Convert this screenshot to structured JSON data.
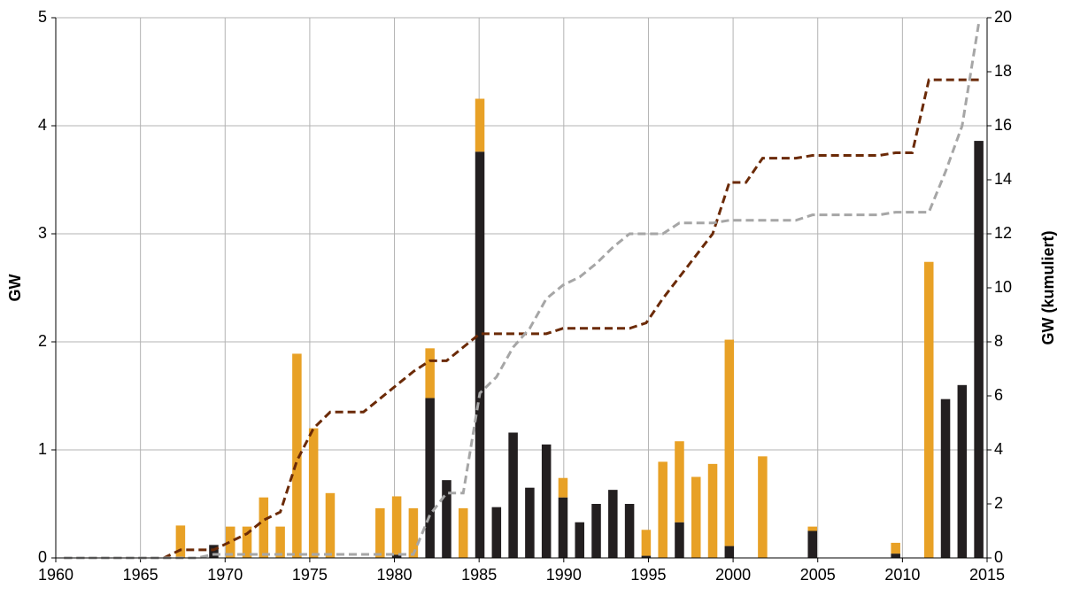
{
  "chart_data": {
    "type": "bar",
    "ylabel": "GW",
    "y2label": "GW (kumuliert)",
    "x": [
      1960,
      1961,
      1962,
      1963,
      1964,
      1965,
      1966,
      1967,
      1968,
      1969,
      1970,
      1971,
      1972,
      1973,
      1974,
      1975,
      1976,
      1977,
      1978,
      1979,
      1980,
      1981,
      1982,
      1983,
      1984,
      1985,
      1986,
      1987,
      1988,
      1989,
      1990,
      1991,
      1992,
      1993,
      1994,
      1995,
      1996,
      1997,
      1998,
      1999,
      2000,
      2001,
      2002,
      2003,
      2004,
      2005,
      2006,
      2007,
      2008,
      2009,
      2010,
      2011,
      2012,
      2013,
      2014,
      2015
    ],
    "xlim": [
      1960,
      2015
    ],
    "xticks": [
      1960,
      1965,
      1970,
      1975,
      1980,
      1985,
      1990,
      1995,
      2000,
      2005,
      2010,
      2015
    ],
    "ylim": [
      0,
      5
    ],
    "yticks": [
      0,
      1,
      2,
      3,
      4,
      5
    ],
    "y2lim": [
      0,
      20
    ],
    "y2ticks": [
      0,
      2,
      4,
      6,
      8,
      10,
      12,
      14,
      16,
      18,
      20
    ],
    "grid": true,
    "stacked": true,
    "series": [
      {
        "type": "bar",
        "color": "#231f20",
        "values": [
          0,
          0,
          0,
          0,
          0,
          0,
          0,
          0,
          0,
          0.12,
          0,
          0,
          0,
          0,
          0,
          0,
          0,
          0,
          0,
          0,
          0.03,
          0,
          1.48,
          0.72,
          0,
          3.76,
          0.47,
          1.16,
          0.65,
          1.05,
          0.56,
          0.33,
          0.5,
          0.63,
          0.5,
          0.02,
          0,
          0.33,
          0,
          0,
          0.11,
          0,
          0,
          0,
          0,
          0.25,
          0,
          0,
          0,
          0,
          0.04,
          0,
          0,
          1.47,
          1.6,
          3.86
        ]
      },
      {
        "type": "bar",
        "color": "#e8a126",
        "values": [
          0,
          0,
          0,
          0,
          0,
          0,
          0,
          0.3,
          0,
          0,
          0.29,
          0.29,
          0.56,
          0.29,
          1.89,
          1.2,
          0.6,
          0,
          0,
          0.46,
          0.54,
          0.46,
          0.46,
          0,
          0.46,
          0.49,
          0,
          0,
          0,
          0,
          0.18,
          0,
          0,
          0,
          0,
          0.24,
          0.89,
          0.75,
          0.75,
          0.87,
          1.91,
          0,
          0.94,
          0,
          0,
          0.04,
          0,
          0,
          0,
          0,
          0.1,
          0,
          2.74,
          0,
          0,
          0
        ]
      },
      {
        "type": "line",
        "axis": "y2",
        "color": "#6b2a07",
        "values": [
          0,
          0,
          0,
          0,
          0,
          0,
          0,
          0.3,
          0.3,
          0.3,
          0.6,
          0.9,
          1.4,
          1.7,
          3.6,
          4.8,
          5.4,
          5.4,
          5.4,
          5.9,
          6.4,
          6.9,
          7.3,
          7.3,
          7.8,
          8.3,
          8.3,
          8.3,
          8.3,
          8.3,
          8.5,
          8.5,
          8.5,
          8.5,
          8.5,
          8.7,
          9.6,
          10.4,
          11.2,
          12.0,
          13.9,
          13.9,
          14.8,
          14.8,
          14.8,
          14.9,
          14.9,
          14.9,
          14.9,
          14.9,
          15.0,
          15.0,
          17.7,
          17.7,
          17.7,
          17.7
        ]
      },
      {
        "type": "line",
        "axis": "y2",
        "color": "#a6a6a6",
        "values": [
          0,
          0,
          0,
          0,
          0,
          0,
          0,
          0,
          0,
          0.13,
          0.13,
          0.13,
          0.13,
          0.13,
          0.13,
          0.13,
          0.13,
          0.13,
          0.13,
          0.13,
          0.13,
          0.13,
          1.6,
          2.4,
          2.4,
          6.1,
          6.7,
          7.8,
          8.5,
          9.6,
          10.1,
          10.4,
          10.9,
          11.5,
          12.0,
          12.0,
          12.0,
          12.4,
          12.4,
          12.4,
          12.5,
          12.5,
          12.5,
          12.5,
          12.5,
          12.7,
          12.7,
          12.7,
          12.7,
          12.7,
          12.8,
          12.8,
          12.8,
          14.3,
          16.0,
          19.8
        ]
      }
    ]
  }
}
